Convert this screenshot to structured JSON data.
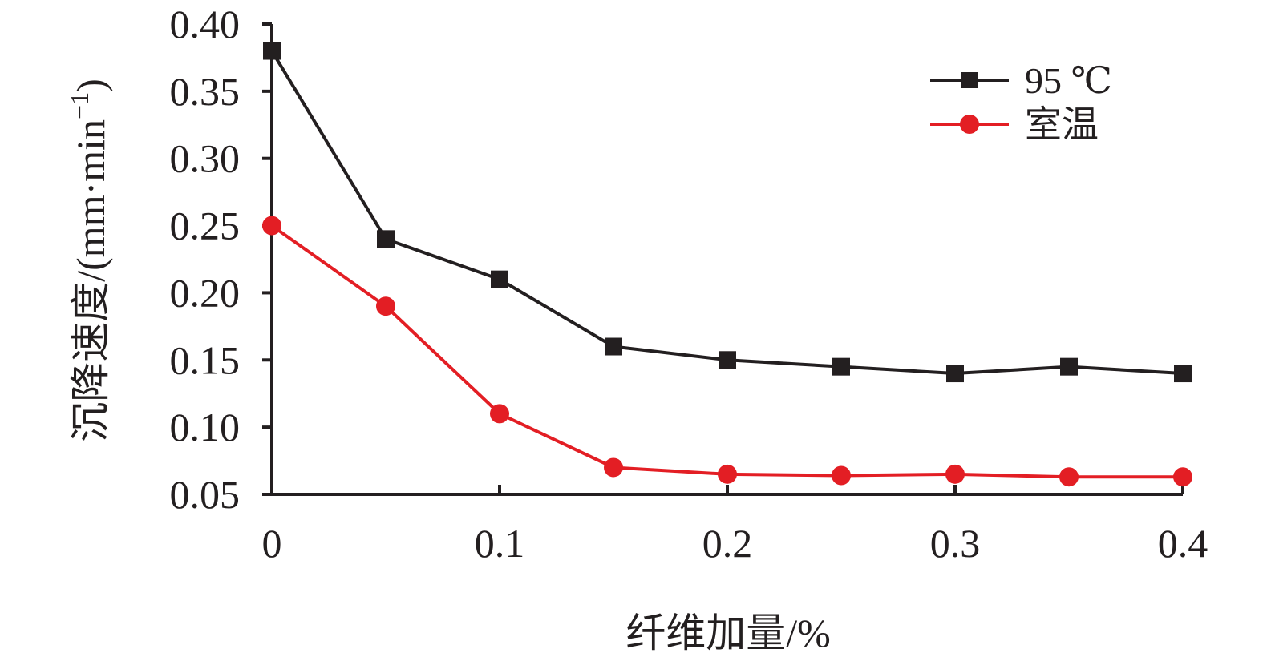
{
  "chart_data": {
    "type": "line",
    "x": [
      0,
      0.05,
      0.1,
      0.15,
      0.2,
      0.25,
      0.3,
      0.35,
      0.4
    ],
    "series": [
      {
        "name": "95 ℃",
        "marker": "square",
        "color": "#231f20",
        "values": [
          0.38,
          0.24,
          0.21,
          0.16,
          0.15,
          0.145,
          0.14,
          0.145,
          0.14
        ]
      },
      {
        "name": "室温",
        "marker": "circle",
        "color": "#e31e24",
        "values": [
          0.25,
          0.19,
          0.11,
          0.07,
          0.065,
          0.064,
          0.065,
          0.063,
          0.063
        ]
      }
    ],
    "xlabel": "纤维加量/%",
    "ylabel": "沉降速度/(mm·min",
    "ylabel_sup": "−1",
    "ylabel_close": ")",
    "xlim": [
      0,
      0.4
    ],
    "ylim": [
      0.05,
      0.4
    ],
    "xticks": [
      0,
      0.1,
      0.2,
      0.3,
      0.4
    ],
    "xtick_labels": [
      "0",
      "0.1",
      "0.2",
      "0.3",
      "0.4"
    ],
    "yticks": [
      0.05,
      0.1,
      0.15,
      0.2,
      0.25,
      0.3,
      0.35,
      0.4
    ],
    "ytick_labels": [
      "0.05",
      "0.10",
      "0.15",
      "0.20",
      "0.25",
      "0.30",
      "0.35",
      "0.40"
    ],
    "grid": false,
    "legend_position": "top-right"
  }
}
